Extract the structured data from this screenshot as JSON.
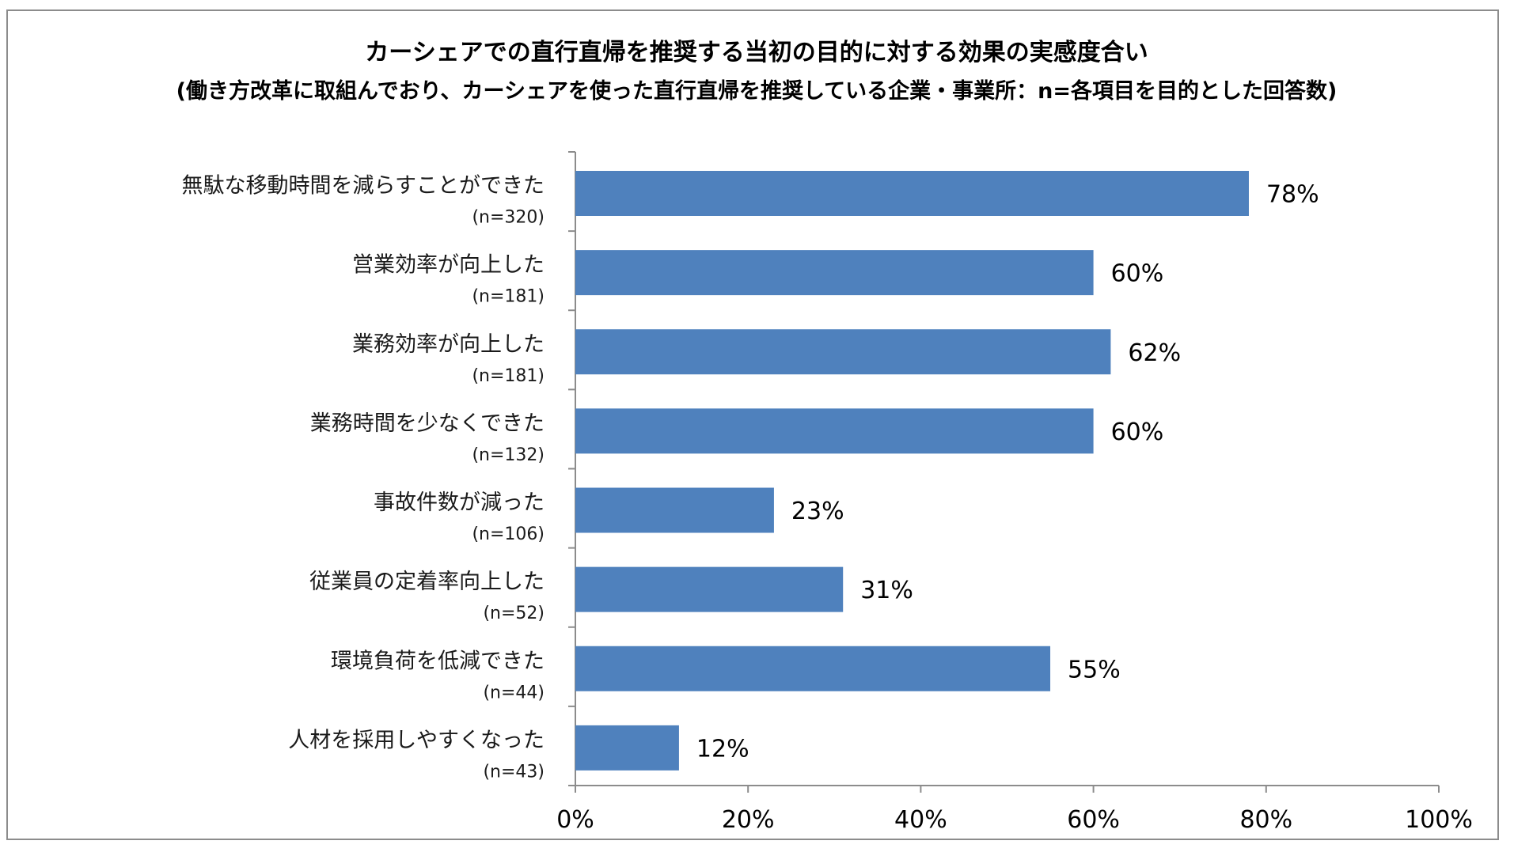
{
  "chart_data": {
    "type": "bar",
    "orientation": "horizontal",
    "title": "カーシェアでの直行直帰を推奨する当初の目的に対する効果の実感度合い",
    "subtitle": "(働き方改革に取組んでおり、カーシェアを使った直行直帰を推奨している企業・事業所：n=各項目を目的とした回答数)",
    "categories": [
      "無駄な移動時間を減らすことができた",
      "営業効率が向上した",
      "業務効率が向上した",
      "業務時間を少なくできた",
      "事故件数が減った",
      "従業員の定着率向上した",
      "環境負荷を低減できた",
      "人材を採用しやすくなった"
    ],
    "n_labels": [
      "(n=320)",
      "(n=181)",
      "(n=181)",
      "(n=132)",
      "(n=106)",
      "(n=52)",
      "(n=44)",
      "(n=43)"
    ],
    "values": [
      78,
      60,
      62,
      60,
      23,
      31,
      55,
      12
    ],
    "value_labels": [
      "78%",
      "60%",
      "62%",
      "60%",
      "23%",
      "31%",
      "55%",
      "12%"
    ],
    "x_ticks": [
      "0%",
      "20%",
      "40%",
      "60%",
      "80%",
      "100%"
    ],
    "xlim": [
      0,
      100
    ],
    "xlabel": "",
    "ylabel": "",
    "grid": false,
    "bar_color": "#4F81BD"
  }
}
